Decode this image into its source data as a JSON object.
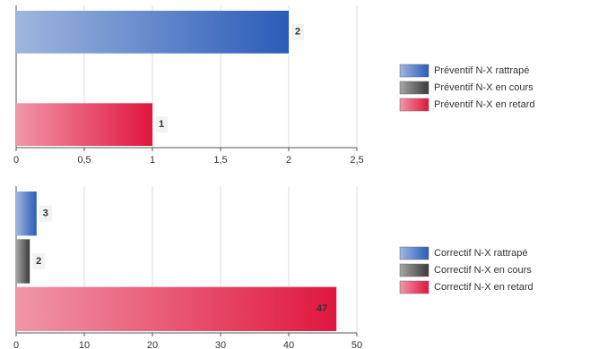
{
  "chart_data": [
    {
      "type": "bar",
      "orientation": "horizontal",
      "series": [
        {
          "name": "Préventif N-X rattrapé",
          "color": "#2a5cb8",
          "values": [
            2
          ]
        },
        {
          "name": "Préventif N-X en cours",
          "color": "#3a3a3a",
          "values": [
            0
          ]
        },
        {
          "name": "Préventif N-X en retard",
          "color": "#e0163e",
          "values": [
            1
          ]
        }
      ],
      "xlim": [
        0,
        2.5
      ],
      "xticks": [
        0,
        {
          "value": 0.5,
          "label": "0,5"
        },
        1,
        {
          "value": 1.5,
          "label": "1,5"
        },
        2,
        {
          "value": 2.5,
          "label": "2,5"
        }
      ],
      "grid": true,
      "legend": "right"
    },
    {
      "type": "bar",
      "orientation": "horizontal",
      "series": [
        {
          "name": "Correctif N-X rattrapé",
          "color": "#2a5cb8",
          "values": [
            3
          ]
        },
        {
          "name": "Correctif N-X en cours",
          "color": "#3a3a3a",
          "values": [
            2
          ]
        },
        {
          "name": "Correctif N-X en retard",
          "color": "#e0163e",
          "values": [
            47
          ]
        }
      ],
      "xlim": [
        0,
        50
      ],
      "xticks": [
        0,
        10,
        20,
        30,
        40,
        50
      ],
      "grid": true,
      "legend": "right"
    }
  ]
}
